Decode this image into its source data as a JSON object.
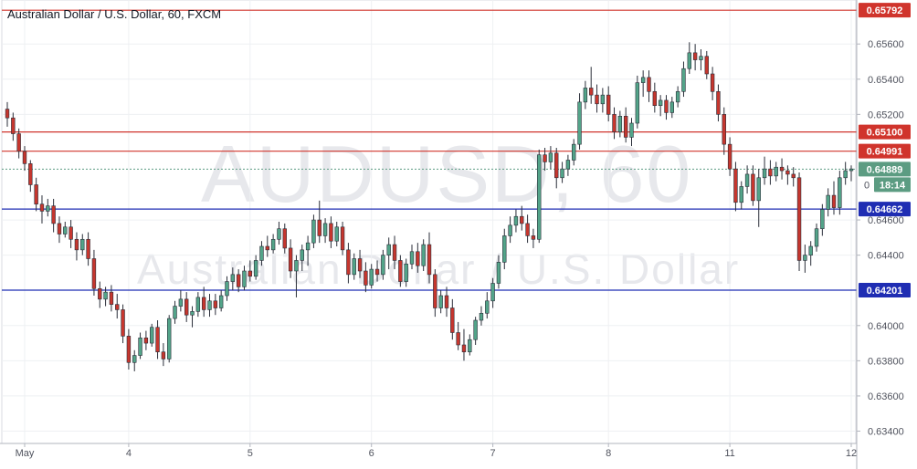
{
  "title": "Australian Dollar / U.S. Dollar, 60, FXCM",
  "watermark": {
    "symbol": "AUDUSD, 60",
    "name": "Australian Dollar / U.S. Dollar"
  },
  "colors": {
    "up": "#53a489",
    "down": "#c6362e",
    "resistance": "#d0342c",
    "support": "#1f2db3",
    "price": "#5c9c82",
    "grid": "#eef0f3"
  },
  "current": {
    "price_label": "0.64889",
    "countdown": "18:14",
    "indicator": "0"
  },
  "chart_data": {
    "type": "candlestick",
    "title": "Australian Dollar / U.S. Dollar, 60, FXCM",
    "x_ticks": [
      "May",
      "4",
      "5",
      "6",
      "7",
      "8",
      "11",
      "12"
    ],
    "y_ticks": [
      "0.65600",
      "0.65400",
      "0.65200",
      "0.64600",
      "0.64400",
      "0.64000",
      "0.63800",
      "0.63600",
      "0.63400"
    ],
    "ylim": [
      0.6333,
      0.6585
    ],
    "levels": [
      {
        "value": 0.65792,
        "label": "0.65792",
        "kind": "resistance"
      },
      {
        "value": 0.651,
        "label": "0.65100",
        "kind": "resistance"
      },
      {
        "value": 0.64991,
        "label": "0.64991",
        "kind": "resistance"
      },
      {
        "value": 0.64662,
        "label": "0.64662",
        "kind": "support"
      },
      {
        "value": 0.64201,
        "label": "0.64201",
        "kind": "support"
      }
    ],
    "last_price": 0.64889,
    "candles": [
      [
        0.6523,
        0.6527,
        0.6513,
        0.6518
      ],
      [
        0.6518,
        0.6521,
        0.6505,
        0.6509
      ],
      [
        0.6509,
        0.6512,
        0.6495,
        0.6499
      ],
      [
        0.6499,
        0.6502,
        0.6488,
        0.6492
      ],
      [
        0.6492,
        0.6494,
        0.6476,
        0.648
      ],
      [
        0.648,
        0.6484,
        0.6465,
        0.6469
      ],
      [
        0.6469,
        0.6474,
        0.6458,
        0.6465
      ],
      [
        0.6465,
        0.6472,
        0.6462,
        0.6468
      ],
      [
        0.6468,
        0.6472,
        0.6453,
        0.6458
      ],
      [
        0.6458,
        0.6462,
        0.6447,
        0.6452
      ],
      [
        0.6452,
        0.6459,
        0.645,
        0.6456
      ],
      [
        0.6456,
        0.646,
        0.6444,
        0.6449
      ],
      [
        0.6449,
        0.6453,
        0.6437,
        0.6443
      ],
      [
        0.6443,
        0.6452,
        0.644,
        0.6449
      ],
      [
        0.6449,
        0.6453,
        0.6434,
        0.6438
      ],
      [
        0.6438,
        0.6443,
        0.6417,
        0.6421
      ],
      [
        0.6421,
        0.6425,
        0.641,
        0.6415
      ],
      [
        0.6415,
        0.6422,
        0.6411,
        0.6419
      ],
      [
        0.6419,
        0.6423,
        0.6408,
        0.6412
      ],
      [
        0.6412,
        0.6418,
        0.6404,
        0.6409
      ],
      [
        0.6409,
        0.6412,
        0.639,
        0.6394
      ],
      [
        0.6394,
        0.6398,
        0.6375,
        0.6379
      ],
      [
        0.6379,
        0.6386,
        0.6374,
        0.6383
      ],
      [
        0.6383,
        0.6396,
        0.6381,
        0.6393
      ],
      [
        0.6393,
        0.6397,
        0.6386,
        0.639
      ],
      [
        0.639,
        0.6401,
        0.6388,
        0.6399
      ],
      [
        0.6399,
        0.6403,
        0.6381,
        0.6385
      ],
      [
        0.6385,
        0.639,
        0.6377,
        0.6381
      ],
      [
        0.6381,
        0.6406,
        0.6379,
        0.6404
      ],
      [
        0.6404,
        0.6414,
        0.6401,
        0.6411
      ],
      [
        0.6411,
        0.642,
        0.6408,
        0.6415
      ],
      [
        0.6415,
        0.6419,
        0.6402,
        0.6406
      ],
      [
        0.6406,
        0.6411,
        0.6399,
        0.6408
      ],
      [
        0.6408,
        0.6419,
        0.6405,
        0.6416
      ],
      [
        0.6416,
        0.6422,
        0.6405,
        0.6409
      ],
      [
        0.6409,
        0.6418,
        0.6405,
        0.6414
      ],
      [
        0.6414,
        0.6418,
        0.6406,
        0.641
      ],
      [
        0.641,
        0.642,
        0.6408,
        0.6417
      ],
      [
        0.6417,
        0.6428,
        0.6414,
        0.6425
      ],
      [
        0.6425,
        0.6433,
        0.642,
        0.6429
      ],
      [
        0.6429,
        0.6432,
        0.6419,
        0.6422
      ],
      [
        0.6422,
        0.6434,
        0.642,
        0.6431
      ],
      [
        0.6431,
        0.6437,
        0.6425,
        0.6428
      ],
      [
        0.6428,
        0.644,
        0.6426,
        0.6437
      ],
      [
        0.6437,
        0.6448,
        0.6434,
        0.6445
      ],
      [
        0.6445,
        0.6451,
        0.6439,
        0.6443
      ],
      [
        0.6443,
        0.6452,
        0.6441,
        0.6449
      ],
      [
        0.6449,
        0.6459,
        0.6446,
        0.6455
      ],
      [
        0.6455,
        0.6458,
        0.6441,
        0.6444
      ],
      [
        0.6444,
        0.6449,
        0.6427,
        0.6431
      ],
      [
        0.6431,
        0.644,
        0.6416,
        0.6437
      ],
      [
        0.6437,
        0.6446,
        0.6431,
        0.6443
      ],
      [
        0.6443,
        0.6451,
        0.6434,
        0.6447
      ],
      [
        0.6447,
        0.6463,
        0.6444,
        0.646
      ],
      [
        0.646,
        0.6471,
        0.6447,
        0.6451
      ],
      [
        0.6451,
        0.6461,
        0.6447,
        0.6458
      ],
      [
        0.6458,
        0.6462,
        0.6444,
        0.6448
      ],
      [
        0.6448,
        0.6459,
        0.6445,
        0.6456
      ],
      [
        0.6456,
        0.6459,
        0.644,
        0.6443
      ],
      [
        0.6443,
        0.6447,
        0.6424,
        0.6429
      ],
      [
        0.6429,
        0.6441,
        0.6426,
        0.6438
      ],
      [
        0.6438,
        0.6443,
        0.6427,
        0.6431
      ],
      [
        0.6431,
        0.6436,
        0.6419,
        0.6423
      ],
      [
        0.6423,
        0.6435,
        0.6421,
        0.6432
      ],
      [
        0.6432,
        0.6437,
        0.6425,
        0.6429
      ],
      [
        0.6429,
        0.6443,
        0.6426,
        0.644
      ],
      [
        0.644,
        0.645,
        0.6432,
        0.6446
      ],
      [
        0.6446,
        0.6451,
        0.6432,
        0.6437
      ],
      [
        0.6437,
        0.644,
        0.6422,
        0.6425
      ],
      [
        0.6425,
        0.6438,
        0.6422,
        0.6435
      ],
      [
        0.6435,
        0.6446,
        0.6432,
        0.6442
      ],
      [
        0.6442,
        0.6447,
        0.643,
        0.6434
      ],
      [
        0.6434,
        0.6449,
        0.6431,
        0.6446
      ],
      [
        0.6446,
        0.6453,
        0.6424,
        0.6429
      ],
      [
        0.6429,
        0.6432,
        0.6405,
        0.641
      ],
      [
        0.641,
        0.642,
        0.6407,
        0.6417
      ],
      [
        0.6417,
        0.6422,
        0.6405,
        0.641
      ],
      [
        0.641,
        0.6415,
        0.6392,
        0.6396
      ],
      [
        0.6396,
        0.6402,
        0.6386,
        0.6389
      ],
      [
        0.6389,
        0.6398,
        0.638,
        0.6385
      ],
      [
        0.6385,
        0.6395,
        0.6383,
        0.6392
      ],
      [
        0.6392,
        0.6405,
        0.6389,
        0.6403
      ],
      [
        0.6403,
        0.6411,
        0.64,
        0.6407
      ],
      [
        0.6407,
        0.6419,
        0.6404,
        0.6414
      ],
      [
        0.6414,
        0.6427,
        0.641,
        0.6424
      ],
      [
        0.6424,
        0.644,
        0.6421,
        0.6436
      ],
      [
        0.6436,
        0.6455,
        0.6432,
        0.6451
      ],
      [
        0.6451,
        0.6462,
        0.6447,
        0.6457
      ],
      [
        0.6457,
        0.6466,
        0.6453,
        0.6462
      ],
      [
        0.6462,
        0.6468,
        0.6454,
        0.6458
      ],
      [
        0.6458,
        0.6463,
        0.6447,
        0.6451
      ],
      [
        0.6451,
        0.6455,
        0.6444,
        0.6449
      ],
      [
        0.6449,
        0.65,
        0.6447,
        0.6497
      ],
      [
        0.6497,
        0.6501,
        0.6488,
        0.6493
      ],
      [
        0.6493,
        0.6502,
        0.6489,
        0.6498
      ],
      [
        0.6498,
        0.6501,
        0.6478,
        0.6484
      ],
      [
        0.6484,
        0.6493,
        0.6481,
        0.6489
      ],
      [
        0.6489,
        0.6497,
        0.6485,
        0.6494
      ],
      [
        0.6494,
        0.6506,
        0.6491,
        0.6503
      ],
      [
        0.6503,
        0.6532,
        0.65,
        0.6527
      ],
      [
        0.6527,
        0.6539,
        0.6523,
        0.6535
      ],
      [
        0.6535,
        0.6547,
        0.6526,
        0.6531
      ],
      [
        0.6531,
        0.6537,
        0.6521,
        0.6526
      ],
      [
        0.6526,
        0.6535,
        0.6521,
        0.6531
      ],
      [
        0.6531,
        0.6536,
        0.6516,
        0.652
      ],
      [
        0.652,
        0.6524,
        0.6506,
        0.651
      ],
      [
        0.651,
        0.6522,
        0.6507,
        0.6519
      ],
      [
        0.6519,
        0.6524,
        0.6504,
        0.6507
      ],
      [
        0.6507,
        0.6518,
        0.6502,
        0.6515
      ],
      [
        0.6515,
        0.6542,
        0.6512,
        0.6538
      ],
      [
        0.6538,
        0.6545,
        0.653,
        0.6541
      ],
      [
        0.6541,
        0.6545,
        0.6527,
        0.6533
      ],
      [
        0.6533,
        0.6538,
        0.6521,
        0.6525
      ],
      [
        0.6525,
        0.6531,
        0.6519,
        0.6528
      ],
      [
        0.6528,
        0.6531,
        0.6517,
        0.6521
      ],
      [
        0.6521,
        0.653,
        0.6518,
        0.6527
      ],
      [
        0.6527,
        0.6536,
        0.6524,
        0.6533
      ],
      [
        0.6533,
        0.655,
        0.653,
        0.6546
      ],
      [
        0.6546,
        0.6561,
        0.6543,
        0.6555
      ],
      [
        0.6555,
        0.656,
        0.6545,
        0.6551
      ],
      [
        0.6551,
        0.6557,
        0.6545,
        0.6553
      ],
      [
        0.6553,
        0.6556,
        0.654,
        0.6543
      ],
      [
        0.6543,
        0.6547,
        0.6528,
        0.6533
      ],
      [
        0.6533,
        0.6537,
        0.6516,
        0.652
      ],
      [
        0.652,
        0.6524,
        0.6497,
        0.6503
      ],
      [
        0.6503,
        0.6507,
        0.6485,
        0.6489
      ],
      [
        0.6489,
        0.6493,
        0.6465,
        0.647
      ],
      [
        0.647,
        0.6482,
        0.6466,
        0.6479
      ],
      [
        0.6479,
        0.6491,
        0.6475,
        0.6486
      ],
      [
        0.6486,
        0.6491,
        0.6468,
        0.6471
      ],
      [
        0.6471,
        0.6489,
        0.6456,
        0.6484
      ],
      [
        0.6484,
        0.6496,
        0.648,
        0.6489
      ],
      [
        0.6489,
        0.6494,
        0.648,
        0.6485
      ],
      [
        0.6485,
        0.6493,
        0.6482,
        0.649
      ],
      [
        0.649,
        0.6495,
        0.6483,
        0.6488
      ],
      [
        0.6488,
        0.6491,
        0.648,
        0.6486
      ],
      [
        0.6486,
        0.649,
        0.6479,
        0.6484
      ],
      [
        0.6484,
        0.6487,
        0.6431,
        0.6437
      ],
      [
        0.6437,
        0.6446,
        0.643,
        0.644
      ],
      [
        0.644,
        0.6448,
        0.6434,
        0.6445
      ],
      [
        0.6445,
        0.6458,
        0.6442,
        0.6455
      ],
      [
        0.6455,
        0.6469,
        0.6451,
        0.6466
      ],
      [
        0.6466,
        0.6478,
        0.6462,
        0.6474
      ],
      [
        0.6474,
        0.6482,
        0.6463,
        0.6467
      ],
      [
        0.6467,
        0.6488,
        0.6463,
        0.6484
      ],
      [
        0.6484,
        0.6493,
        0.648,
        0.6488
      ],
      [
        0.6488,
        0.6491,
        0.6482,
        0.6489
      ]
    ]
  }
}
